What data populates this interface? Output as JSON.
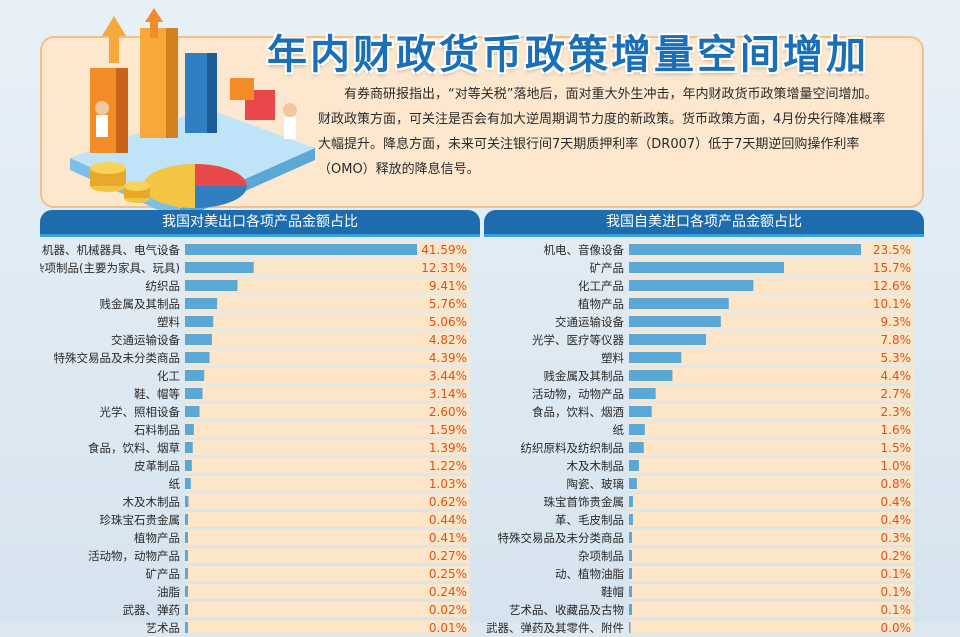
{
  "header": {
    "title": "年内财政货币政策增量空间增加",
    "intro": "有券商研报指出，“对等关税”落地后，面对重大外生冲击，年内财政货币政策增量空间增加。财政政策方面，可关注是否会有加大逆周期调节力度的新政策。货币政策方面，4月份央行降准概率大幅提升。降息方面，未来可关注银行间7天期质押利率（DR007）低于7天期逆回购操作利率（OMO）释放的降息信号。"
  },
  "colors": {
    "bar": "#5aa8d6",
    "row": "#fde5c8",
    "value": "#d9531e",
    "header": "#1d6cae"
  },
  "chart_data": [
    {
      "type": "bar",
      "orientation": "horizontal",
      "title": "我国对美出口各项产品金额占比",
      "categories": [
        "机器、机械器具、电气设备",
        "杂项制品(主要为家具、玩具)",
        "纺织品",
        "贱金属及其制品",
        "塑料",
        "交通运输设备",
        "特殊交易品及未分类商品",
        "化工",
        "鞋、帽等",
        "光学、照相设备",
        "石料制品",
        "食品，饮料、烟草",
        "皮革制品",
        "纸",
        "木及木制品",
        "珍珠宝石贵金属",
        "植物产品",
        "活动物，动物产品",
        "矿产品",
        "油脂",
        "武器、弹药",
        "艺术品"
      ],
      "values": [
        41.59,
        12.31,
        9.41,
        5.76,
        5.06,
        4.82,
        4.39,
        3.44,
        3.14,
        2.6,
        1.59,
        1.39,
        1.22,
        1.03,
        0.62,
        0.44,
        0.41,
        0.27,
        0.25,
        0.24,
        0.02,
        0.01
      ],
      "labels": [
        "41.59%",
        "12.31%",
        "9.41%",
        "5.76%",
        "5.06%",
        "4.82%",
        "4.39%",
        "3.44%",
        "3.14%",
        "2.60%",
        "1.59%",
        "1.39%",
        "1.22%",
        "1.03%",
        "0.62%",
        "0.44%",
        "0.41%",
        "0.27%",
        "0.25%",
        "0.24%",
        "0.02%",
        "0.01%"
      ],
      "xlim": [
        0,
        41.59
      ]
    },
    {
      "type": "bar",
      "orientation": "horizontal",
      "title": "我国自美进口各项产品金额占比",
      "categories": [
        "机电、音像设备",
        "矿产品",
        "化工产品",
        "植物产品",
        "交通运输设备",
        "光学、医疗等仪器",
        "塑料",
        "贱金属及其制品",
        "活动物，动物产品",
        "食品，饮料、烟酒",
        "纸",
        "纺织原料及纺织制品",
        "木及木制品",
        "陶瓷、玻璃",
        "珠宝首饰贵金属",
        "革、毛皮制品",
        "特殊交易品及未分类商品",
        "杂项制品",
        "动、植物油脂",
        "鞋帽",
        "艺术品、收藏品及古物",
        "武器、弹药及其零件、附件"
      ],
      "values": [
        23.5,
        15.7,
        12.6,
        10.1,
        9.3,
        7.8,
        5.3,
        4.4,
        2.7,
        2.3,
        1.6,
        1.5,
        1.0,
        0.8,
        0.4,
        0.4,
        0.3,
        0.2,
        0.1,
        0.1,
        0.1,
        0.0
      ],
      "labels": [
        "23.5%",
        "15.7%",
        "12.6%",
        "10.1%",
        "9.3%",
        "7.8%",
        "5.3%",
        "4.4%",
        "2.7%",
        "2.3%",
        "1.6%",
        "1.5%",
        "1.0%",
        "0.8%",
        "0.4%",
        "0.4%",
        "0.3%",
        "0.2%",
        "0.1%",
        "0.1%",
        "0.1%",
        "0.0%"
      ],
      "xlim": [
        0,
        23.5
      ]
    }
  ]
}
